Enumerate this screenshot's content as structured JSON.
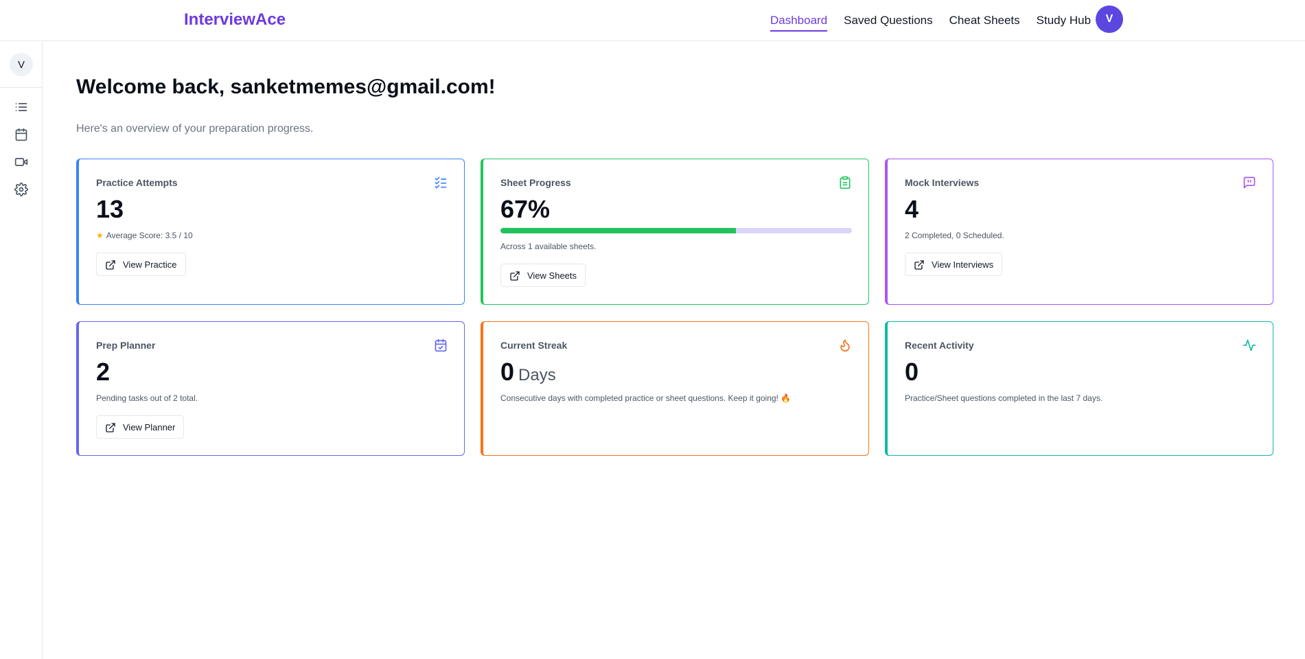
{
  "app": {
    "brand": "InterviewAce"
  },
  "nav": {
    "items": [
      {
        "label": "Dashboard",
        "active": true
      },
      {
        "label": "Saved Questions",
        "active": false
      },
      {
        "label": "Cheat Sheets",
        "active": false
      },
      {
        "label": "Study Hub",
        "active": false
      }
    ],
    "avatar_initial": "V"
  },
  "sidebar": {
    "avatar_initial": "V",
    "icons": [
      "list-icon",
      "calendar-icon",
      "video-icon",
      "gear-icon"
    ]
  },
  "header": {
    "title": "Welcome back, sanketmemes@gmail.com!",
    "subtitle": "Here's an overview of your preparation progress."
  },
  "cards": {
    "practice": {
      "title": "Practice Attempts",
      "value": "13",
      "desc": "Average Score: 3.5 / 10",
      "button": "View Practice",
      "accent": "#3b82f6"
    },
    "sheets": {
      "title": "Sheet Progress",
      "value": "67%",
      "progress": 0.67,
      "desc": "Across 1 available sheets.",
      "button": "View Sheets",
      "accent": "#22c55e"
    },
    "mock": {
      "title": "Mock Interviews",
      "value": "4",
      "desc": "2 Completed, 0 Scheduled.",
      "button": "View Interviews",
      "accent": "#a855f7"
    },
    "planner": {
      "title": "Prep Planner",
      "value": "2",
      "desc": "Pending tasks out of 2 total.",
      "button": "View Planner",
      "accent": "#6366f1"
    },
    "streak": {
      "title": "Current Streak",
      "value": "0",
      "unit": "Days",
      "desc": "Consecutive days with completed practice or sheet questions. Keep it going! 🔥",
      "accent": "#f97316"
    },
    "activity": {
      "title": "Recent Activity",
      "value": "0",
      "desc": "Practice/Sheet questions completed in the last 7 days.",
      "accent": "#14b8a6"
    }
  }
}
